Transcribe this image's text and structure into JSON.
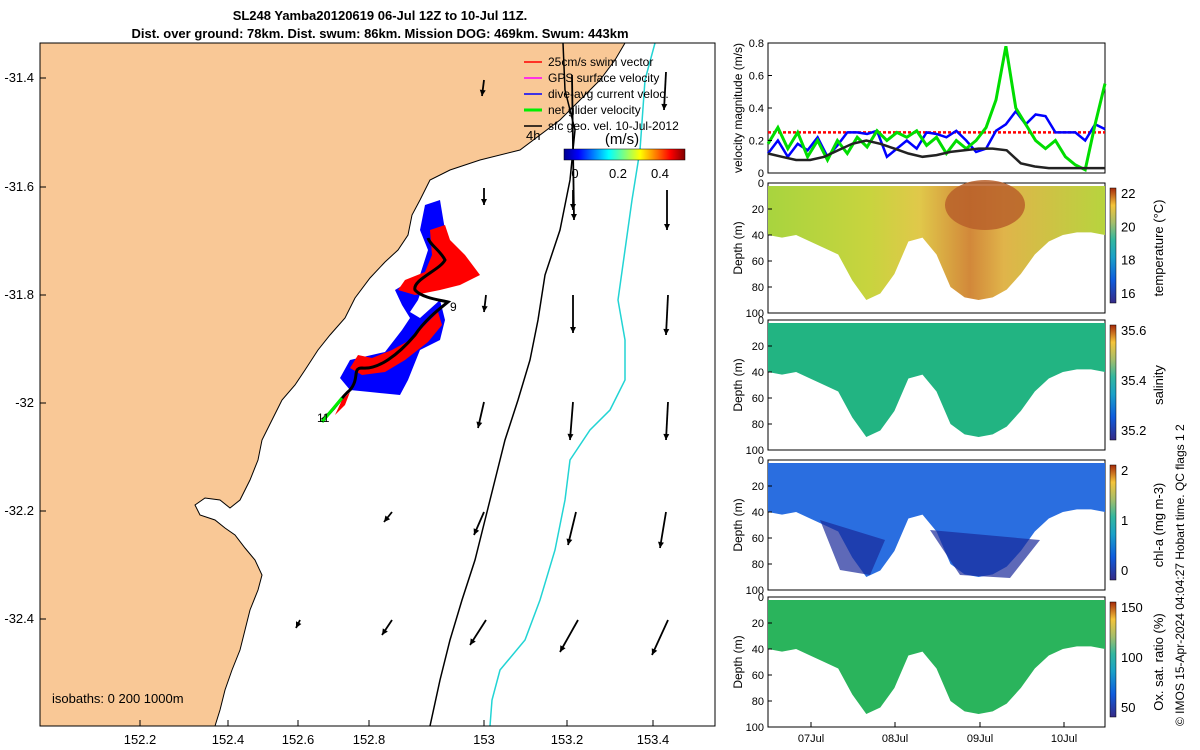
{
  "header": {
    "line1": "SL248 Yamba20120619 06-Jul 12Z to 10-Jul 11Z.",
    "line2": "Dist. over ground: 78km. Dist. swum: 86km. Mission DOG: 469km. Swum: 443km"
  },
  "map": {
    "x_ticks": [
      "152.2",
      "152.4",
      "152.6",
      "152.8",
      "153",
      "153.2",
      "153.4"
    ],
    "y_ticks": [
      "-31.4",
      "-31.6",
      "-31.8",
      "-32",
      "-32.2",
      "-32.4"
    ],
    "isobaths_label": "isobaths: 0   200  1000m",
    "waypoint_9": "9",
    "waypoint_11": "11",
    "land_color": "#f9c896",
    "legend": [
      {
        "label": "25cm/s swim vector",
        "color": "#ff0000"
      },
      {
        "label": "GPS surface velocity",
        "color": "#ff00ff"
      },
      {
        "label": "dive-avg current veloc.",
        "color": "#0000ff"
      },
      {
        "label": "net glider velocity",
        "color": "#00ee00"
      },
      {
        "label": "sfc geo. vel. 10-Jul-2012",
        "color": "#000000"
      }
    ],
    "legend_interval": "4h",
    "colorbar_title": "(m/s)",
    "colorbar_ticks": [
      "0",
      "0.2",
      "0.4"
    ]
  },
  "chart_data": [
    {
      "type": "line",
      "ylabel": "velocity magnitude (m/s)",
      "y_ticks": [
        "0.8",
        "0.6",
        "0.4",
        "0.2",
        "0"
      ],
      "ylim": [
        0,
        0.8
      ],
      "x_ticks": [
        "07Jul",
        "08Jul",
        "09Jul",
        "10Jul"
      ],
      "series": [
        {
          "color": "#ff0000",
          "values": [
            0.25,
            0.25,
            0.25,
            0.25,
            0.25,
            0.25,
            0.25,
            0.25,
            0.25,
            0.25,
            0.25,
            0.25,
            0.25,
            0.25,
            0.25,
            0.25,
            0.25,
            0.25,
            0.25,
            0.25,
            0.25,
            0.25,
            0.25,
            0.25,
            0.25,
            0.25,
            0.25,
            0.25,
            0.25,
            0.25,
            0.25,
            0.25,
            0.25,
            0.25,
            0.25
          ]
        },
        {
          "color": "#0000ff",
          "values": [
            0.12,
            0.2,
            0.1,
            0.18,
            0.14,
            0.22,
            0.1,
            0.17,
            0.25,
            0.25,
            0.24,
            0.26,
            0.1,
            0.15,
            0.2,
            0.15,
            0.25,
            0.24,
            0.22,
            0.26,
            0.2,
            0.13,
            0.15,
            0.26,
            0.3,
            0.38,
            0.3,
            0.36,
            0.35,
            0.25,
            0.25,
            0.25,
            0.2,
            0.3,
            0.27
          ]
        },
        {
          "color": "#00dd00",
          "values": [
            0.18,
            0.28,
            0.15,
            0.25,
            0.1,
            0.2,
            0.08,
            0.2,
            0.12,
            0.22,
            0.16,
            0.26,
            0.2,
            0.25,
            0.22,
            0.26,
            0.17,
            0.22,
            0.12,
            0.2,
            0.15,
            0.2,
            0.28,
            0.45,
            0.78,
            0.4,
            0.3,
            0.2,
            0.15,
            0.2,
            0.1,
            0.05,
            0.02,
            0.3,
            0.55
          ]
        },
        {
          "color": "#222222",
          "values": [
            0.12,
            0.1,
            0.08,
            0.08,
            0.1,
            0.14,
            0.18,
            0.2,
            0.18,
            0.15,
            0.12,
            0.1,
            0.11,
            0.13,
            0.14,
            0.15,
            0.15,
            0.14,
            0.06,
            0.04,
            0.03,
            0.03,
            0.03,
            0.03,
            0.03
          ]
        }
      ]
    },
    {
      "type": "heatmap",
      "ylabel": "Depth (m)",
      "y_ticks": [
        "0",
        "20",
        "40",
        "60",
        "80",
        "100"
      ],
      "colorbar_label": "temperature (°C)",
      "colorbar_ticks": [
        "22",
        "20",
        "18",
        "16"
      ],
      "x_ticks": [
        "07Jul",
        "08Jul",
        "09Jul",
        "10Jul"
      ]
    },
    {
      "type": "heatmap",
      "ylabel": "Depth (m)",
      "y_ticks": [
        "0",
        "20",
        "40",
        "60",
        "80",
        "100"
      ],
      "colorbar_label": "salinity",
      "colorbar_ticks": [
        "35.6",
        "35.4",
        "35.2"
      ],
      "x_ticks": [
        "07Jul",
        "08Jul",
        "09Jul",
        "10Jul"
      ]
    },
    {
      "type": "heatmap",
      "ylabel": "Depth (m)",
      "y_ticks": [
        "0",
        "20",
        "40",
        "60",
        "80",
        "100"
      ],
      "colorbar_label": "chl-a (mg m-3)",
      "colorbar_ticks": [
        "2",
        "1",
        "0"
      ],
      "x_ticks": [
        "07Jul",
        "08Jul",
        "09Jul",
        "10Jul"
      ]
    },
    {
      "type": "heatmap",
      "ylabel": "Depth (m)",
      "y_ticks": [
        "0",
        "20",
        "40",
        "60",
        "80",
        "100"
      ],
      "colorbar_label": "Ox. sat. ratio (%)",
      "colorbar_ticks": [
        "150",
        "100",
        "50"
      ],
      "x_ticks": [
        "07Jul",
        "08Jul",
        "09Jul",
        "10Jul"
      ]
    }
  ],
  "footer": {
    "credit": "© IMOS 15-Apr-2024 04:04:27 Hobart time. QC flags 1  2"
  }
}
